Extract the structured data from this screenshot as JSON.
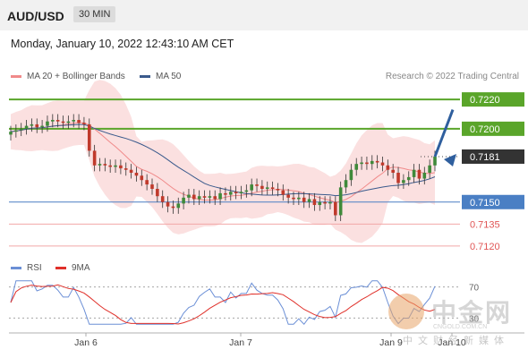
{
  "header": {
    "pair": "AUD/USD",
    "timeframe": "30 MIN"
  },
  "date_line": "Monday, January 10, 2022 12:43:10 AM CET",
  "legend": {
    "ma20": "MA 20 + Bollinger Bands",
    "ma50": "MA 50",
    "credit": "Research © 2022 Trading Central",
    "ma20_color": "#f08a8a",
    "ma50_color": "#3a5a8c"
  },
  "rsi_legend": {
    "rsi": "RSI",
    "ma9": "9MA",
    "rsi_color": "#6b8fd6",
    "ma9_color": "#e0302a"
  },
  "watermark": {
    "cn": "中金网",
    "url": "CNGOLD.COM.CN",
    "sub": "中文财经新媒体"
  },
  "chart_data": {
    "type": "candlestick",
    "x_ticks": [
      "Jan 6",
      "Jan 7",
      "Jan 9",
      "Jan 10"
    ],
    "price_range": [
      0.7112,
      0.7228
    ],
    "levels": [
      {
        "label": "0.7220",
        "value": 0.722,
        "style": "green-box",
        "color": "#5aa52a"
      },
      {
        "label": "0.7200",
        "value": 0.72,
        "style": "green-box",
        "color": "#5aa52a"
      },
      {
        "label": "0.7181",
        "value": 0.7181,
        "style": "current",
        "color": "#333333"
      },
      {
        "label": "0.7150",
        "value": 0.715,
        "style": "blue-box",
        "color": "#4a7fc4"
      },
      {
        "label": "0.7135",
        "value": 0.7135,
        "style": "red-text",
        "color": "#e05555"
      },
      {
        "label": "0.7120",
        "value": 0.712,
        "style": "red-text",
        "color": "#e05555"
      }
    ],
    "rsi_levels": [
      "70",
      "30"
    ],
    "series_close": [
      0.7198,
      0.7199,
      0.72,
      0.7202,
      0.7203,
      0.7201,
      0.7202,
      0.7205,
      0.7206,
      0.7205,
      0.7204,
      0.7205,
      0.7206,
      0.7204,
      0.7203,
      0.7185,
      0.7175,
      0.7176,
      0.7175,
      0.7174,
      0.7175,
      0.7173,
      0.7172,
      0.717,
      0.7168,
      0.7165,
      0.7162,
      0.7159,
      0.7154,
      0.715,
      0.7147,
      0.7146,
      0.7149,
      0.7153,
      0.7155,
      0.7152,
      0.7154,
      0.7153,
      0.7154,
      0.7152,
      0.7156,
      0.7155,
      0.7157,
      0.7156,
      0.7157,
      0.7158,
      0.7162,
      0.7161,
      0.7159,
      0.716,
      0.7159,
      0.7158,
      0.7155,
      0.7153,
      0.7152,
      0.7153,
      0.715,
      0.7152,
      0.7148,
      0.715,
      0.7149,
      0.715,
      0.7141,
      0.716,
      0.7165,
      0.7172,
      0.7176,
      0.7177,
      0.7176,
      0.7178,
      0.7177,
      0.7175,
      0.7172,
      0.717,
      0.7163,
      0.7165,
      0.7167,
      0.7172,
      0.7166,
      0.717,
      0.7175,
      0.7181
    ]
  }
}
